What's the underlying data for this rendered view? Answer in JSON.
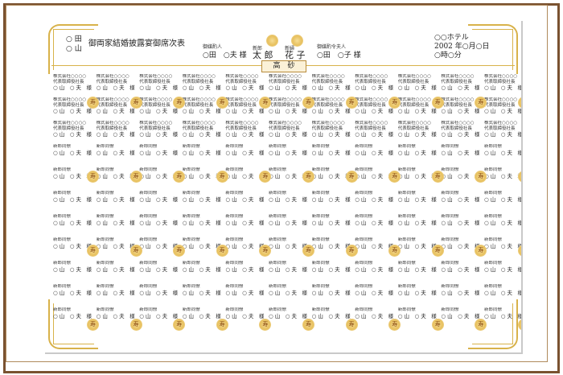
{
  "header": {
    "host_names": [
      "○ 田",
      "○ 山"
    ],
    "title": "御両家結婚披露宴御席次表",
    "go_between_label": "御媒酌人",
    "go_between_name": "○田　○夫 様",
    "groom_label": "新郎",
    "groom_name": "太 郎",
    "bride_label": "新婦",
    "bride_name": "花 子",
    "lady_go_between_label": "御媒酌令夫人",
    "lady_go_between_name": "○田　○子 様",
    "venue": "○○ホテル",
    "date": "2002 年○月○日",
    "time": "○時○分"
  },
  "head_table_label": "高　砂",
  "seat_template": {
    "company": "株式会社○○○○",
    "position": "代表取締役社長",
    "relation": "新郎同僚",
    "guest_name": "○ 山　○ 夫　様"
  },
  "emblem_char": "寿",
  "accent_color": "#d8b24a",
  "frame_color": "#7a5230"
}
